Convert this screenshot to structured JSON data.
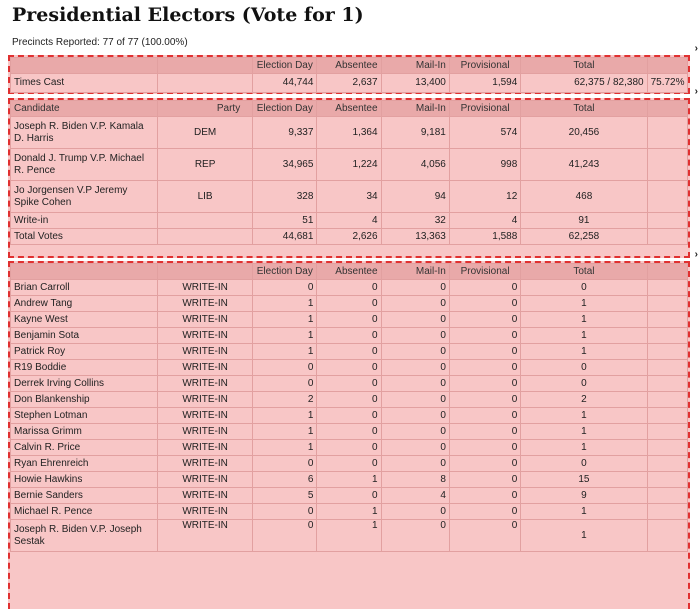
{
  "title": "Presidential Electors (Vote for  1)",
  "precincts": "Precincts Reported: 77 of 77 (100.00%)",
  "headers": {
    "candidate": "Candidate",
    "party": "Party",
    "election_day": "Election Day",
    "absentee": "Absentee",
    "mail_in": "Mail-In",
    "provisional": "Provisional",
    "total": "Total"
  },
  "times_cast": {
    "label": "Times Cast",
    "election_day": "44,744",
    "absentee": "2,637",
    "mail_in": "13,400",
    "provisional": "1,594",
    "total": "62,375 / 82,380",
    "percent": "75.72%"
  },
  "candidates": [
    {
      "name": "Joseph R. Biden V.P. Kamala D. Harris",
      "party": "DEM",
      "election_day": "9,337",
      "absentee": "1,364",
      "mail_in": "9,181",
      "provisional": "574",
      "total": "20,456"
    },
    {
      "name": "Donald J. Trump V.P. Michael R. Pence",
      "party": "REP",
      "election_day": "34,965",
      "absentee": "1,224",
      "mail_in": "4,056",
      "provisional": "998",
      "total": "41,243"
    },
    {
      "name": "Jo Jorgensen V.P Jeremy Spike Cohen",
      "party": "LIB",
      "election_day": "328",
      "absentee": "34",
      "mail_in": "94",
      "provisional": "12",
      "total": "468"
    },
    {
      "name": "Write-in",
      "party": "",
      "election_day": "51",
      "absentee": "4",
      "mail_in": "32",
      "provisional": "4",
      "total": "91"
    },
    {
      "name": "Total Votes",
      "party": "",
      "election_day": "44,681",
      "absentee": "2,626",
      "mail_in": "13,363",
      "provisional": "1,588",
      "total": "62,258"
    }
  ],
  "writeins": [
    {
      "name": "Brian Carroll",
      "party": "WRITE-IN",
      "election_day": "0",
      "absentee": "0",
      "mail_in": "0",
      "provisional": "0",
      "total": "0"
    },
    {
      "name": "Andrew Tang",
      "party": "WRITE-IN",
      "election_day": "1",
      "absentee": "0",
      "mail_in": "0",
      "provisional": "0",
      "total": "1"
    },
    {
      "name": "Kayne West",
      "party": "WRITE-IN",
      "election_day": "1",
      "absentee": "0",
      "mail_in": "0",
      "provisional": "0",
      "total": "1"
    },
    {
      "name": "Benjamin Sota",
      "party": "WRITE-IN",
      "election_day": "1",
      "absentee": "0",
      "mail_in": "0",
      "provisional": "0",
      "total": "1"
    },
    {
      "name": "Patrick Roy",
      "party": "WRITE-IN",
      "election_day": "1",
      "absentee": "0",
      "mail_in": "0",
      "provisional": "0",
      "total": "1"
    },
    {
      "name": "R19 Boddie",
      "party": "WRITE-IN",
      "election_day": "0",
      "absentee": "0",
      "mail_in": "0",
      "provisional": "0",
      "total": "0"
    },
    {
      "name": "Derrek Irving Collins",
      "party": "WRITE-IN",
      "election_day": "0",
      "absentee": "0",
      "mail_in": "0",
      "provisional": "0",
      "total": "0"
    },
    {
      "name": "Don Blankenship",
      "party": "WRITE-IN",
      "election_day": "2",
      "absentee": "0",
      "mail_in": "0",
      "provisional": "0",
      "total": "2"
    },
    {
      "name": "Stephen Lotman",
      "party": "WRITE-IN",
      "election_day": "1",
      "absentee": "0",
      "mail_in": "0",
      "provisional": "0",
      "total": "1"
    },
    {
      "name": "Marissa Grimm",
      "party": "WRITE-IN",
      "election_day": "1",
      "absentee": "0",
      "mail_in": "0",
      "provisional": "0",
      "total": "1"
    },
    {
      "name": "Calvin R. Price",
      "party": "WRITE-IN",
      "election_day": "1",
      "absentee": "0",
      "mail_in": "0",
      "provisional": "0",
      "total": "1"
    },
    {
      "name": "Ryan Ehrenreich",
      "party": "WRITE-IN",
      "election_day": "0",
      "absentee": "0",
      "mail_in": "0",
      "provisional": "0",
      "total": "0"
    },
    {
      "name": "Howie Hawkins",
      "party": "WRITE-IN",
      "election_day": "6",
      "absentee": "1",
      "mail_in": "8",
      "provisional": "0",
      "total": "15"
    },
    {
      "name": "Bernie Sanders",
      "party": "WRITE-IN",
      "election_day": "5",
      "absentee": "0",
      "mail_in": "4",
      "provisional": "0",
      "total": "9"
    },
    {
      "name": "Michael R. Pence",
      "party": "WRITE-IN",
      "election_day": "0",
      "absentee": "1",
      "mail_in": "0",
      "provisional": "0",
      "total": "1"
    },
    {
      "name": "Joseph R. Biden V.P. Joseph Sestak",
      "party": "WRITE-IN",
      "election_day": "0",
      "absentee": "1",
      "mail_in": "0",
      "provisional": "0",
      "total": "1"
    }
  ],
  "arrow_glyph": "›"
}
